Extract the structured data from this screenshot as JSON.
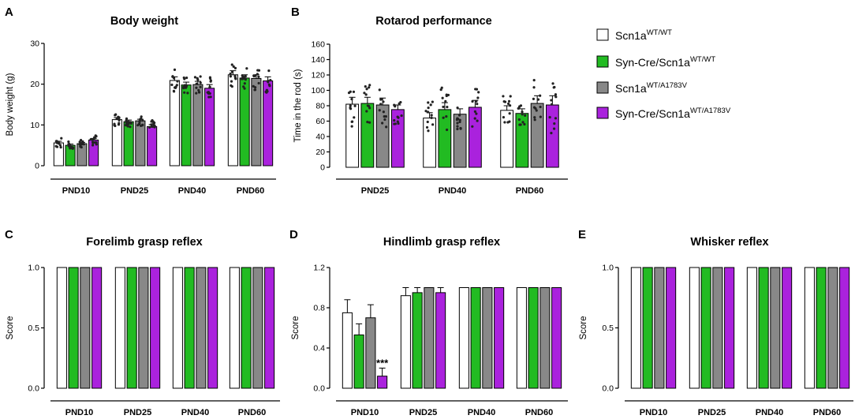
{
  "legend": {
    "entries": [
      {
        "base": "Scn1a",
        "sup": "WT/WT",
        "color": "#ffffff"
      },
      {
        "base": "Syn-Cre/Scn1a",
        "sup": "WT/WT",
        "color": "#22bb22"
      },
      {
        "base": "Scn1a",
        "sup": "WT/A1783V",
        "color": "#888888"
      },
      {
        "base": "Syn-Cre/Scn1a",
        "sup": "WT/A1783V",
        "color": "#aa22dd"
      }
    ]
  },
  "chart_data": [
    {
      "panel": "A",
      "type": "bar",
      "title": "Body weight",
      "ylabel": "Body weight (g)",
      "ylim": [
        0,
        30
      ],
      "yticks": [
        "0",
        "10",
        "20",
        "30"
      ],
      "categories": [
        "PND10",
        "PND25",
        "PND40",
        "PND60"
      ],
      "series": [
        {
          "name": "Scn1a WT/WT",
          "values": [
            5.6,
            11.3,
            20.9,
            22.3
          ],
          "err": [
            0.4,
            0.5,
            0.9,
            1.0
          ]
        },
        {
          "name": "Syn-Cre/Scn1a WT/WT",
          "values": [
            5.0,
            10.8,
            19.8,
            21.5
          ],
          "err": [
            0.3,
            0.4,
            0.7,
            0.8
          ]
        },
        {
          "name": "Scn1a WT/A1783V",
          "values": [
            5.4,
            11.0,
            19.9,
            21.4
          ],
          "err": [
            0.3,
            0.4,
            0.8,
            0.9
          ]
        },
        {
          "name": "Syn-Cre/Scn1a WT/A1783V",
          "values": [
            6.3,
            9.6,
            19.0,
            20.8
          ],
          "err": [
            0.4,
            0.5,
            0.9,
            1.0
          ]
        }
      ]
    },
    {
      "panel": "B",
      "type": "bar",
      "title": "Rotarod performance",
      "ylabel": "Time in the rod (s)",
      "ylim": [
        0,
        160
      ],
      "yticks": [
        "0",
        "20",
        "40",
        "60",
        "80",
        "100",
        "120",
        "140",
        "160"
      ],
      "categories": [
        "PND25",
        "PND40",
        "PND60"
      ],
      "series": [
        {
          "name": "Scn1a WT/WT",
          "values": [
            82,
            64,
            74
          ],
          "err": [
            9,
            7,
            6
          ]
        },
        {
          "name": "Syn-Cre/Scn1a WT/WT",
          "values": [
            83,
            75,
            70
          ],
          "err": [
            8,
            9,
            6
          ]
        },
        {
          "name": "Scn1a WT/A1783V",
          "values": [
            81,
            69,
            83
          ],
          "err": [
            9,
            7,
            10
          ]
        },
        {
          "name": "Syn-Cre/Scn1a WT/A1783V",
          "values": [
            75,
            78,
            81
          ],
          "err": [
            6,
            9,
            12
          ]
        }
      ]
    },
    {
      "panel": "C",
      "type": "bar",
      "title": "Forelimb grasp reflex",
      "ylabel": "Score",
      "ylim": [
        0,
        1
      ],
      "yticks": [
        "0.0",
        "0.5",
        "1.0"
      ],
      "categories": [
        "PND10",
        "PND25",
        "PND40",
        "PND60"
      ],
      "series": [
        {
          "name": "Scn1a WT/WT",
          "values": [
            1,
            1,
            1,
            1
          ]
        },
        {
          "name": "Syn-Cre/Scn1a WT/WT",
          "values": [
            1,
            1,
            1,
            1
          ]
        },
        {
          "name": "Scn1a WT/A1783V",
          "values": [
            1,
            1,
            1,
            1
          ]
        },
        {
          "name": "Syn-Cre/Scn1a WT/A1783V",
          "values": [
            1,
            1,
            1,
            1
          ]
        }
      ]
    },
    {
      "panel": "D",
      "type": "bar",
      "title": "Hindlimb grasp reflex",
      "ylabel": "Score",
      "ylim": [
        0,
        1.2
      ],
      "yticks": [
        "0.0",
        "0.4",
        "0.8",
        "1.2"
      ],
      "categories": [
        "PND10",
        "PND25",
        "PND40",
        "PND60"
      ],
      "annotation": "***",
      "series": [
        {
          "name": "Scn1a WT/WT",
          "values": [
            0.75,
            0.92,
            1,
            1
          ],
          "err": [
            0.13,
            0.08,
            0,
            0
          ]
        },
        {
          "name": "Syn-Cre/Scn1a WT/WT",
          "values": [
            0.53,
            0.95,
            1,
            1
          ],
          "err": [
            0.11,
            0.05,
            0,
            0
          ]
        },
        {
          "name": "Scn1a WT/A1783V",
          "values": [
            0.7,
            1,
            1,
            1
          ],
          "err": [
            0.13,
            0,
            0,
            0
          ]
        },
        {
          "name": "Syn-Cre/Scn1a WT/A1783V",
          "values": [
            0.12,
            0.95,
            1,
            1
          ],
          "err": [
            0.08,
            0.05,
            0,
            0
          ]
        }
      ]
    },
    {
      "panel": "E",
      "type": "bar",
      "title": "Whisker reflex",
      "ylabel": "Score",
      "ylim": [
        0,
        1
      ],
      "yticks": [
        "0.0",
        "0.5",
        "1.0"
      ],
      "categories": [
        "PND10",
        "PND25",
        "PND40",
        "PND60"
      ],
      "series": [
        {
          "name": "Scn1a WT/WT",
          "values": [
            1,
            1,
            1,
            1
          ]
        },
        {
          "name": "Syn-Cre/Scn1a WT/WT",
          "values": [
            1,
            1,
            1,
            1
          ]
        },
        {
          "name": "Scn1a WT/A1783V",
          "values": [
            1,
            1,
            1,
            1
          ]
        },
        {
          "name": "Syn-Cre/Scn1a WT/A1783V",
          "values": [
            1,
            1,
            1,
            1
          ]
        }
      ]
    }
  ]
}
